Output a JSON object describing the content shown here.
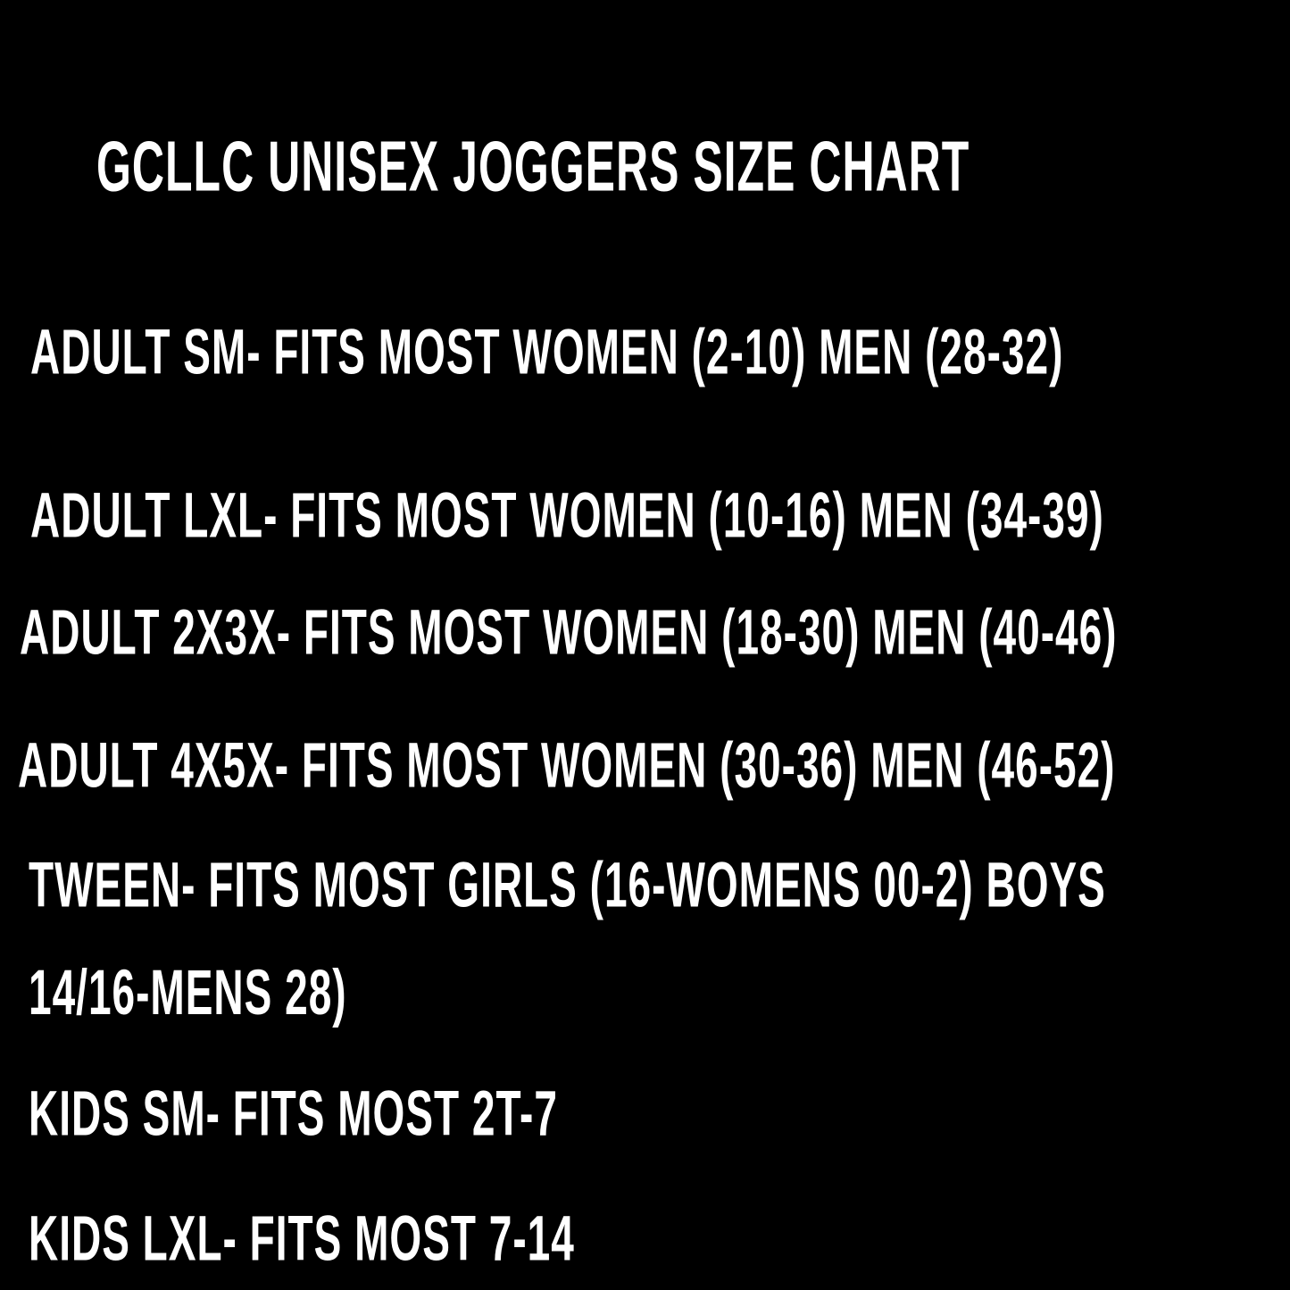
{
  "title": "GCLLC UNISEX JOGGERS SIZE CHART",
  "items": [
    "ADULT SM- FITS MOST WOMEN (2-10) MEN (28-32)",
    "ADULT LXL- FITS MOST WOMEN (10-16) MEN (34-39)",
    "ADULT 2X3X- FITS MOST WOMEN (18-30) MEN (40-46)",
    "ADULT 4X5X- FITS MOST WOMEN (30-36) MEN (46-52)",
    "TWEEN- FITS MOST GIRLS (16-WOMENS 00-2) BOYS 14/16-MENS 28)",
    "KIDS SM- FITS MOST 2T-7",
    "KIDS LXL- FITS MOST 7-14"
  ]
}
